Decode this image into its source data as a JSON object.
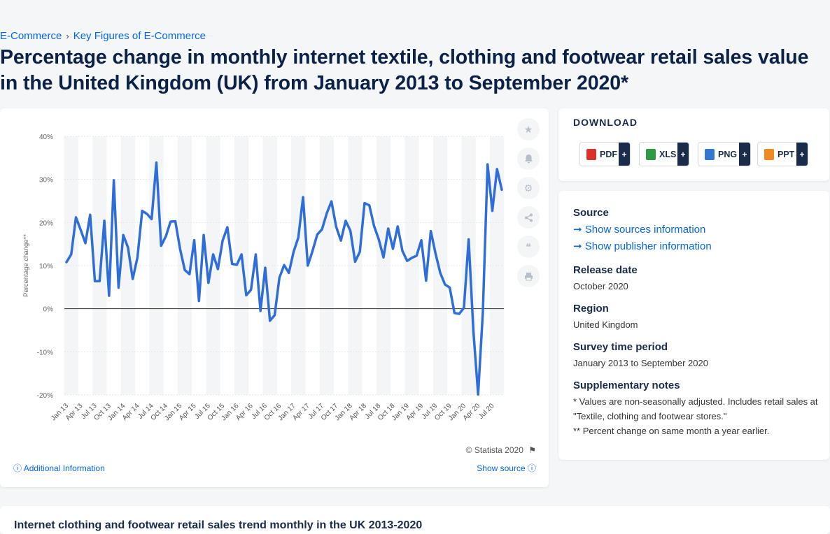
{
  "breadcrumb": [
    "E-Commerce",
    "Key Figures of E-Commerce"
  ],
  "title": "Percentage change in monthly internet textile, clothing and footwear retail sales value in the United Kingdom (UK) from January 2013 to September 2020*",
  "chart": {
    "copyright": "© Statista 2020",
    "additional_info": "Additional Information",
    "show_source": "Show source"
  },
  "download": {
    "label": "DOWNLOAD",
    "buttons": [
      {
        "label": "PDF",
        "color": "#d9312c"
      },
      {
        "label": "XLS",
        "color": "#2e9a46"
      },
      {
        "label": "PNG",
        "color": "#3476d2"
      },
      {
        "label": "PPT",
        "color": "#f08a24"
      }
    ]
  },
  "info": {
    "source_heading": "Source",
    "show_sources": "Show sources information",
    "show_publisher": "Show publisher information",
    "release_heading": "Release date",
    "release_value": "October 2020",
    "region_heading": "Region",
    "region_value": "United Kingdom",
    "survey_heading": "Survey time period",
    "survey_value": "January 2013 to September 2020",
    "notes_heading": "Supplementary notes",
    "note1": "* Values are non-seasonally adjusted. Includes retail sales at \"Textile, clothing and footwear stores.\"",
    "note2": "** Percent change on same month a year earlier."
  },
  "bottom_title": "Internet clothing and footwear retail sales trend monthly in the UK 2013-2020",
  "chart_data": {
    "type": "line",
    "ylabel": "Percentage change**",
    "ylim": [
      -20,
      40
    ],
    "yticks": [
      40,
      30,
      20,
      10,
      0,
      -10,
      -20
    ],
    "ytick_labels": [
      "40%",
      "30%",
      "20%",
      "10%",
      "0%",
      "-10%",
      "-20%"
    ],
    "xtick_labels": [
      "Jan 13",
      "Apr 13",
      "Jul 13",
      "Oct 13",
      "Jan 14",
      "Apr 14",
      "Jul 14",
      "Oct 14",
      "Jan 15",
      "Apr 15",
      "Jul 15",
      "Oct 15",
      "Jan 16",
      "Apr 16",
      "Jul 16",
      "Oct 16",
      "Jan 17",
      "Apr 17",
      "Jul 17",
      "Oct 17",
      "Jan 18",
      "Apr 18",
      "Jul 18",
      "Oct 18",
      "Jan 19",
      "Apr 19",
      "Jul 19",
      "Oct 19",
      "Jan 20",
      "Apr 20",
      "Jul 20"
    ],
    "start": "Jan 2013",
    "end": "Sep 2020",
    "line_color": "#2f6ed9",
    "grid": true,
    "series": [
      {
        "values": [
          10.8,
          12.6,
          21.2,
          18.3,
          15.2,
          21.8,
          6.4,
          6.4,
          20.4,
          3.0,
          29.8,
          4.9,
          17.1,
          14.2,
          6.9,
          11.9,
          22.7,
          22.0,
          20.8,
          33.9,
          14.6,
          16.8,
          20.2,
          20.3,
          13.9,
          9.0,
          8.0,
          15.9,
          1.8,
          17.1,
          6.0,
          12.6,
          9.2,
          15.8,
          18.9,
          10.4,
          10.2,
          12.6,
          3.1,
          4.4,
          12.6,
          -0.5,
          9.5,
          -2.8,
          -1.5,
          7.2,
          10.1,
          8.3,
          13.2,
          16.5,
          25.9,
          10.0,
          13.4,
          17.2,
          18.4,
          22.1,
          24.9,
          19.0,
          15.8,
          20.4,
          18.1,
          10.9,
          13.2,
          24.5,
          24.0,
          19.2,
          16.1,
          11.9,
          18.6,
          13.9,
          19.1,
          13.4,
          11.1,
          11.8,
          12.3,
          15.9,
          6.5,
          18.0,
          12.8,
          8.3,
          5.6,
          4.9,
          -1.0,
          -1.2,
          0.2,
          16.1,
          -5.2,
          -19.9,
          -0.8,
          33.5,
          22.7,
          32.4,
          27.6
        ]
      }
    ]
  }
}
